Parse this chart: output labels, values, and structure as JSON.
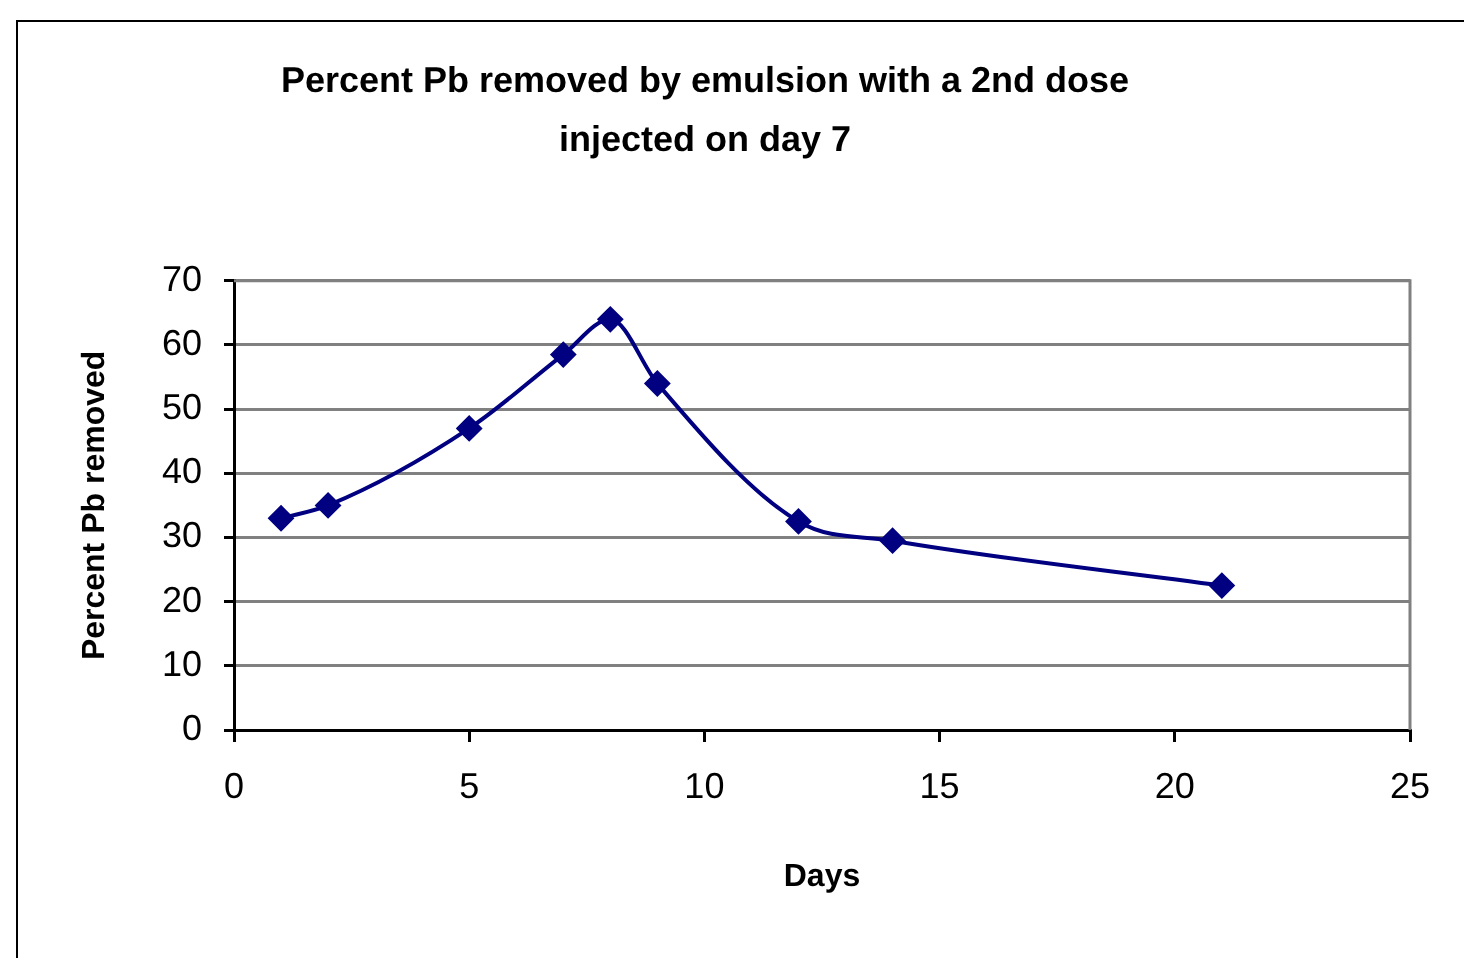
{
  "chart_data": {
    "type": "line",
    "title": "Percent Pb removed by emulsion with a 2nd dose injected on day 7",
    "xlabel": "Days",
    "ylabel": "Percent Pb removed",
    "x": [
      1,
      2,
      5,
      7,
      8,
      9,
      12,
      14,
      21
    ],
    "series": [
      {
        "color": "#000080",
        "values": [
          33,
          35,
          47,
          58.5,
          64,
          54,
          32.5,
          29.5,
          22.5
        ]
      }
    ],
    "xlim": [
      0,
      25
    ],
    "xticks": [
      0,
      5,
      10,
      15,
      20,
      25
    ],
    "ylim": [
      0,
      70
    ],
    "yticks": [
      0,
      10,
      20,
      30,
      40,
      50,
      60,
      70
    ],
    "grid": "y",
    "marker": "diamond",
    "line_style": "solid"
  }
}
